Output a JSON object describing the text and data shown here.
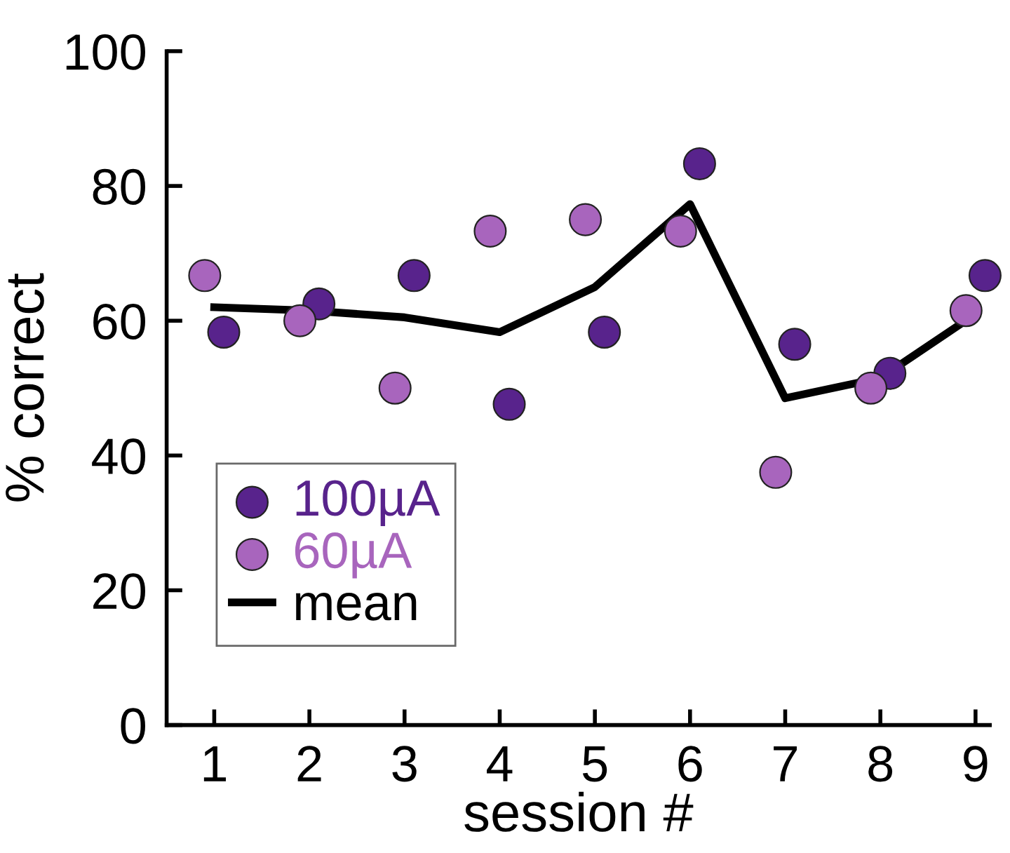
{
  "chart_data": {
    "type": "scatter",
    "xlabel": "session #",
    "ylabel": "% correct",
    "xlim": [
      0.5,
      9.15
    ],
    "xticks": [
      1,
      2,
      3,
      4,
      5,
      6,
      7,
      8,
      9
    ],
    "ylim": [
      0,
      100
    ],
    "yticks": [
      0,
      20,
      40,
      60,
      80,
      100
    ],
    "grid": false,
    "legend": "bottom left",
    "marker": "circle",
    "series": [
      {
        "name": "100µA",
        "color": "#58238c",
        "x": [
          1.1,
          2.1,
          3.1,
          4.1,
          5.1,
          6.1,
          7.1,
          8.1,
          9.1
        ],
        "values": [
          58.3,
          62.5,
          66.7,
          47.6,
          58.3,
          83.3,
          56.5,
          52.2,
          66.7
        ]
      },
      {
        "name": "60µA",
        "color": "#a865bd",
        "x": [
          0.9,
          1.9,
          2.9,
          3.9,
          4.9,
          5.9,
          6.9,
          7.9,
          8.9
        ],
        "values": [
          66.7,
          60,
          50,
          73.3,
          75,
          73.3,
          37.5,
          50,
          61.5
        ]
      },
      {
        "name": "mean",
        "type": "line",
        "color": "#000000",
        "marker": "none",
        "line_style": "solid",
        "x": [
          1,
          2,
          3,
          4,
          5,
          6,
          7,
          8,
          9
        ],
        "values": [
          62,
          61.5,
          60.5,
          58.3,
          65,
          77.3,
          48.5,
          51.5,
          61
        ]
      }
    ]
  }
}
